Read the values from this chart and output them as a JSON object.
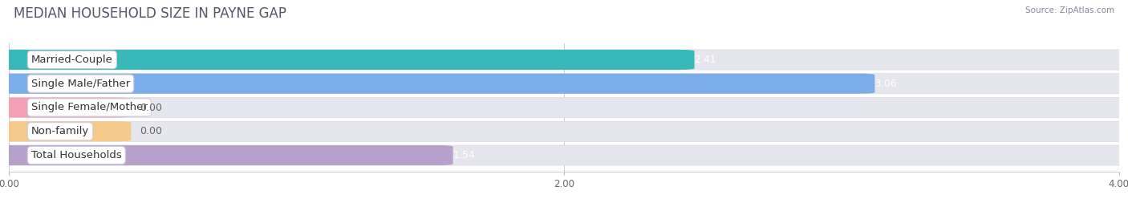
{
  "title": "MEDIAN HOUSEHOLD SIZE IN PAYNE GAP",
  "source": "Source: ZipAtlas.com",
  "categories": [
    "Married-Couple",
    "Single Male/Father",
    "Single Female/Mother",
    "Non-family",
    "Total Households"
  ],
  "values": [
    2.41,
    3.06,
    0.0,
    0.0,
    1.54
  ],
  "bar_colors": [
    "#38b8b8",
    "#7aadea",
    "#f4a0b5",
    "#f5ca8a",
    "#b8a0cc"
  ],
  "zero_bar_width": 0.38,
  "background_color": "#f4f4f8",
  "bar_bg_color": "#e6e6ee",
  "bar_border_color": "#d8d8e4",
  "xlim": [
    0,
    4.0
  ],
  "xticks": [
    0.0,
    2.0,
    4.0
  ],
  "xtick_labels": [
    "0.00",
    "2.00",
    "4.00"
  ],
  "title_fontsize": 12,
  "label_fontsize": 9.5,
  "value_fontsize": 9
}
